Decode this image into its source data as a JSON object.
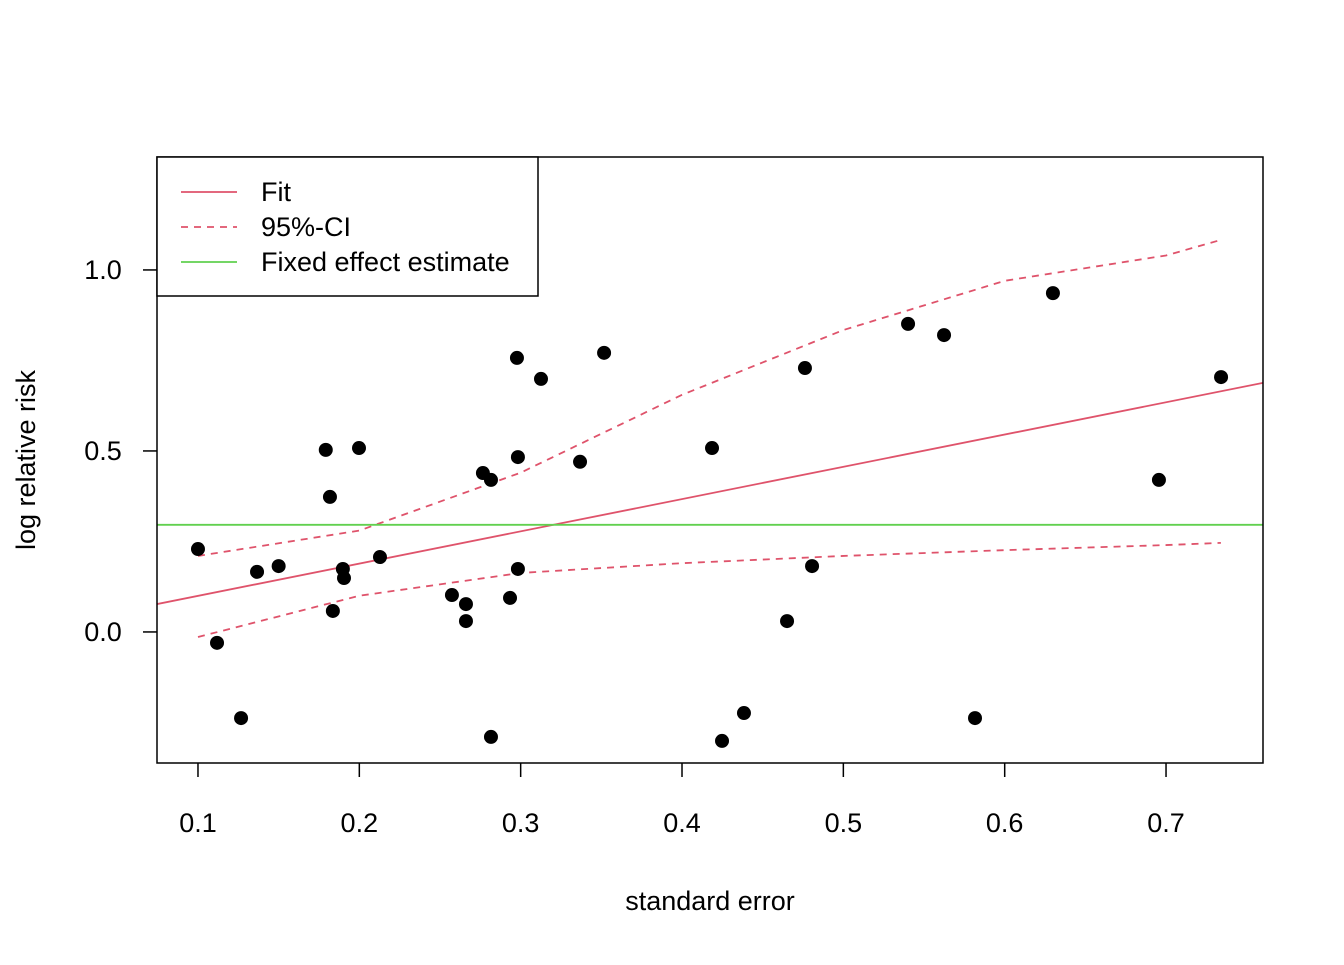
{
  "chart_data": {
    "type": "scatter",
    "x_label": "standard error",
    "y_label": "log relative risk",
    "xlim": [
      0.0746,
      0.7601
    ],
    "ylim": [
      -0.362,
      1.312
    ],
    "xticks": [
      0.1,
      0.2,
      0.3,
      0.4,
      0.5,
      0.6,
      0.7
    ],
    "yticks": [
      {
        "value": 0,
        "label": "0.0"
      },
      {
        "value": 0.5,
        "label": "0.5"
      },
      {
        "value": 1,
        "label": "1.0"
      }
    ],
    "legend": "topleft",
    "points": {
      "color": "#000000",
      "x": [
        0.1,
        0.1118,
        0.1267,
        0.1366,
        0.15,
        0.1792,
        0.1818,
        0.1836,
        0.1898,
        0.1905,
        0.1998,
        0.2128,
        0.2574,
        0.2661,
        0.2661,
        0.2766,
        0.2816,
        0.2816,
        0.2934,
        0.2977,
        0.2983,
        0.2983,
        0.3126,
        0.3368,
        0.3517,
        0.4186,
        0.4248,
        0.4384,
        0.4651,
        0.4762,
        0.4806,
        0.5401,
        0.5624,
        0.5816,
        0.6299,
        0.6956,
        0.7341
      ],
      "y": [
        0.229,
        -0.03,
        -0.238,
        0.166,
        0.182,
        0.503,
        0.373,
        0.058,
        0.174,
        0.149,
        0.508,
        0.207,
        0.102,
        0.077,
        0.03,
        0.439,
        0.42,
        -0.29,
        0.094,
        0.757,
        0.483,
        0.174,
        0.699,
        0.47,
        0.771,
        0.508,
        -0.301,
        -0.224,
        0.03,
        0.729,
        0.182,
        0.851,
        0.82,
        -0.238,
        0.936,
        0.42,
        0.704
      ]
    },
    "series": [
      {
        "name": "Fit",
        "color": "#DF536B",
        "dashed": false,
        "x": [
          0.0746,
          0.7601
        ],
        "values": [
          0.077,
          0.688
        ]
      },
      {
        "name": "95%-CI",
        "color": "#DF536B",
        "dashed": true,
        "x": [
          0.1,
          0.2,
          0.3,
          0.4,
          0.5,
          0.6,
          0.7,
          0.734
        ],
        "upper": [
          0.21,
          0.28,
          0.44,
          0.655,
          0.834,
          0.97,
          1.04,
          1.083
        ],
        "lower": [
          -0.014,
          0.1,
          0.163,
          0.19,
          0.21,
          0.226,
          0.24,
          0.246
        ]
      },
      {
        "name": "Fixed effect estimate",
        "color": "#61D04F",
        "dashed": false,
        "value": 0.296
      }
    ]
  }
}
